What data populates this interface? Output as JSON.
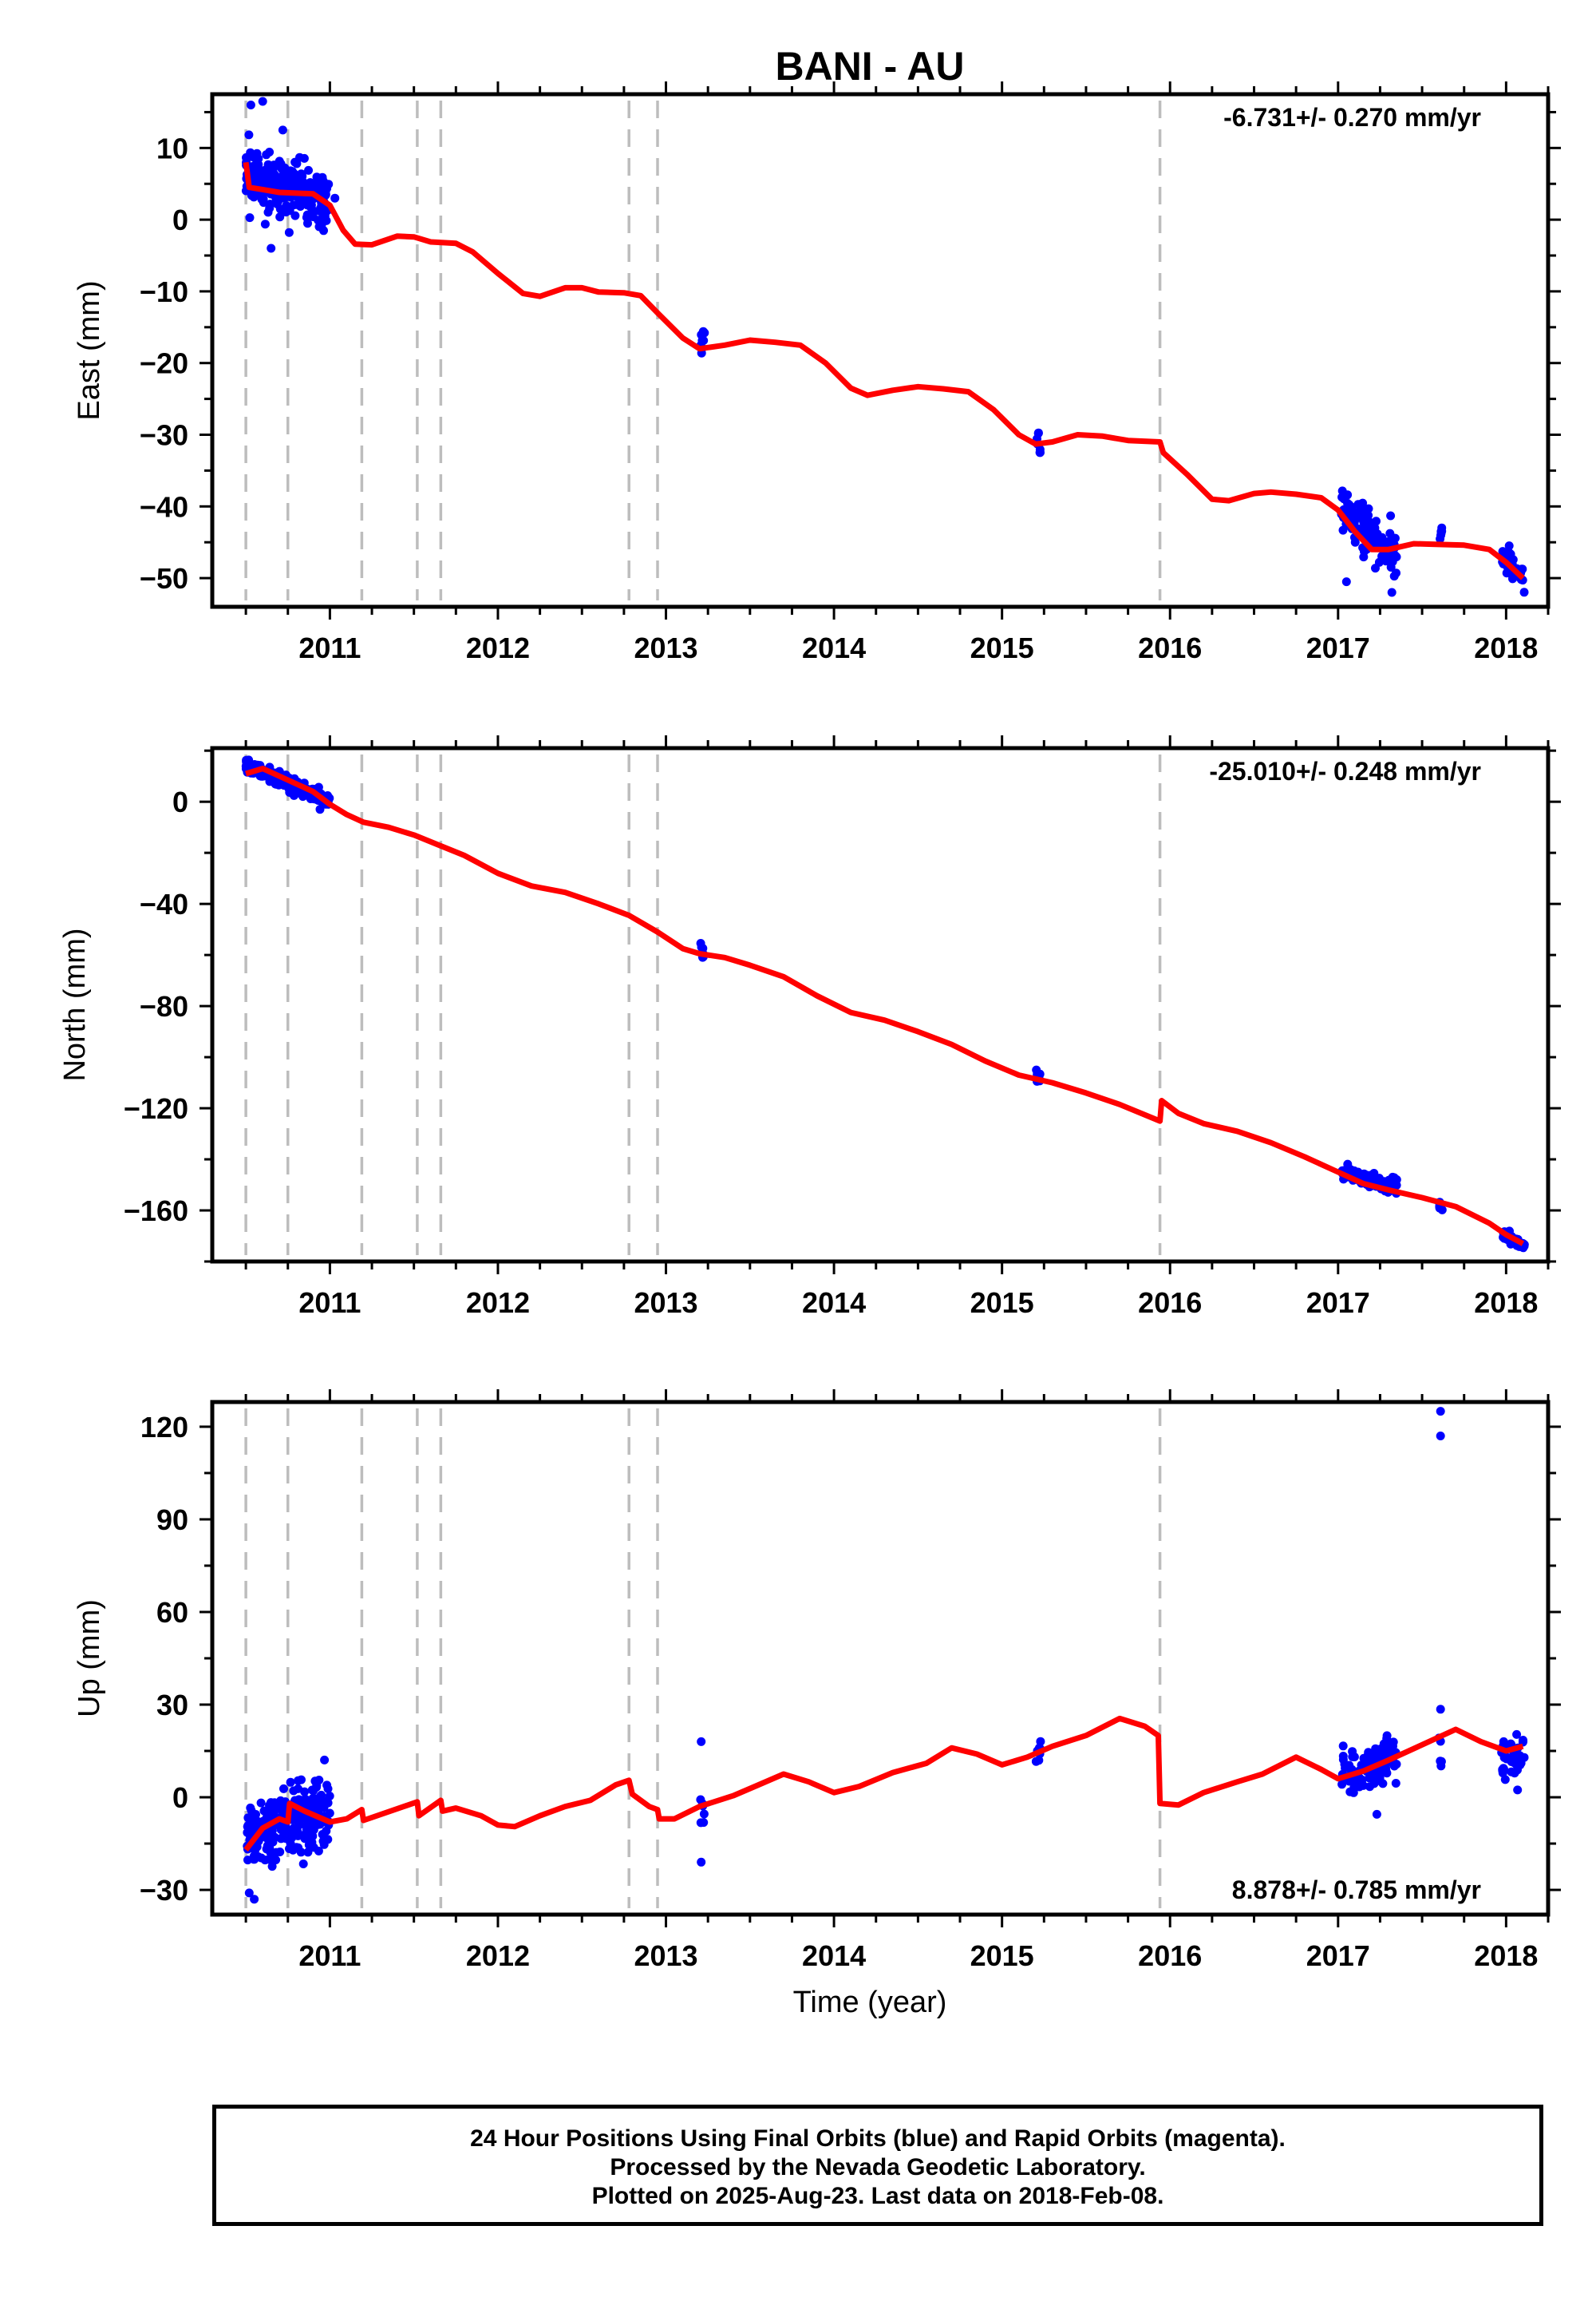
{
  "title": "BANI - AU",
  "xlabel": "Time (year)",
  "footer": {
    "line1": "24 Hour Positions Using Final Orbits (blue) and Rapid Orbits (magenta).",
    "line2": "Processed by the Nevada Geodetic Laboratory.",
    "line3": "Plotted on 2025-Aug-23. Last data on 2018-Feb-08."
  },
  "colors": {
    "data": "#0000ff",
    "model": "#ff0000",
    "breaks": "#bdbdbd",
    "axes": "#000000"
  },
  "chart_data": [
    {
      "type": "scatter",
      "panel": "east",
      "ylabel": "East (mm)",
      "rate": "-6.731+/- 0.270 mm/yr",
      "rate_position": "top-right",
      "xlim": [
        2010.3,
        2018.25
      ],
      "ylim": [
        -54,
        17.5
      ],
      "xticks": [
        2011,
        2012,
        2013,
        2014,
        2015,
        2016,
        2017,
        2018
      ],
      "yticks": [
        10,
        0,
        -10,
        -20,
        -30,
        -40,
        -50
      ],
      "breaks": [
        2010.5,
        2010.75,
        2011.19,
        2011.52,
        2011.66,
        2012.78,
        2012.95,
        2015.94
      ],
      "clusters": [
        {
          "x0": 2010.5,
          "x1": 2011.0,
          "y0": 6.0,
          "y1": 2.5,
          "spread": 3.5,
          "n": 260
        },
        {
          "x0": 2013.2,
          "x1": 2013.23,
          "y0": -16.0,
          "y1": -16.5,
          "spread": 1.6,
          "n": 8
        },
        {
          "x0": 2015.2,
          "x1": 2015.23,
          "y0": -32.0,
          "y1": -32.0,
          "spread": 2.6,
          "n": 7
        },
        {
          "x0": 2017.02,
          "x1": 2017.35,
          "y0": -40.0,
          "y1": -47.0,
          "spread": 3.0,
          "n": 110
        },
        {
          "x0": 2017.6,
          "x1": 2017.62,
          "y0": -43.0,
          "y1": -44.0,
          "spread": 2.2,
          "n": 6
        },
        {
          "x0": 2017.97,
          "x1": 2018.11,
          "y0": -47.0,
          "y1": -50.0,
          "spread": 1.8,
          "n": 45
        }
      ],
      "outliers": [
        [
          2010.53,
          16.0
        ],
        [
          2010.6,
          16.5
        ],
        [
          2010.72,
          12.5
        ],
        [
          2011.03,
          3.0
        ],
        [
          2010.65,
          -4.0
        ],
        [
          2017.32,
          -52.0
        ],
        [
          2017.05,
          -50.5
        ]
      ],
      "model": [
        [
          2010.5,
          8.0
        ],
        [
          2010.52,
          4.5
        ],
        [
          2010.6,
          4.2
        ],
        [
          2010.7,
          3.8
        ],
        [
          2010.8,
          3.7
        ],
        [
          2010.9,
          3.6
        ],
        [
          2011.0,
          2.0
        ],
        [
          2011.08,
          -1.5
        ],
        [
          2011.15,
          -3.4
        ],
        [
          2011.25,
          -3.5
        ],
        [
          2011.4,
          -2.3
        ],
        [
          2011.5,
          -2.4
        ],
        [
          2011.6,
          -3.1
        ],
        [
          2011.75,
          -3.3
        ],
        [
          2011.85,
          -4.5
        ],
        [
          2012.0,
          -7.5
        ],
        [
          2012.15,
          -10.3
        ],
        [
          2012.25,
          -10.7
        ],
        [
          2012.4,
          -9.5
        ],
        [
          2012.5,
          -9.5
        ],
        [
          2012.6,
          -10.1
        ],
        [
          2012.75,
          -10.2
        ],
        [
          2012.85,
          -10.6
        ],
        [
          2012.95,
          -13.0
        ],
        [
          2013.1,
          -16.5
        ],
        [
          2013.2,
          -18.0
        ],
        [
          2013.35,
          -17.5
        ],
        [
          2013.5,
          -16.8
        ],
        [
          2013.65,
          -17.1
        ],
        [
          2013.8,
          -17.5
        ],
        [
          2013.95,
          -20.0
        ],
        [
          2014.1,
          -23.5
        ],
        [
          2014.2,
          -24.5
        ],
        [
          2014.35,
          -23.8
        ],
        [
          2014.5,
          -23.3
        ],
        [
          2014.65,
          -23.6
        ],
        [
          2014.8,
          -24.0
        ],
        [
          2014.95,
          -26.5
        ],
        [
          2015.1,
          -30.0
        ],
        [
          2015.2,
          -31.3
        ],
        [
          2015.3,
          -31.0
        ],
        [
          2015.45,
          -30.0
        ],
        [
          2015.6,
          -30.2
        ],
        [
          2015.75,
          -30.8
        ],
        [
          2015.94,
          -31.0
        ],
        [
          2015.96,
          -32.5
        ],
        [
          2016.1,
          -35.5
        ],
        [
          2016.25,
          -39.0
        ],
        [
          2016.35,
          -39.2
        ],
        [
          2016.5,
          -38.2
        ],
        [
          2016.6,
          -38.0
        ],
        [
          2016.75,
          -38.3
        ],
        [
          2016.9,
          -38.8
        ],
        [
          2017.0,
          -40.5
        ],
        [
          2017.1,
          -43.5
        ],
        [
          2017.2,
          -46.0
        ],
        [
          2017.3,
          -46.0
        ],
        [
          2017.45,
          -45.2
        ],
        [
          2017.6,
          -45.3
        ],
        [
          2017.75,
          -45.4
        ],
        [
          2017.9,
          -46.0
        ],
        [
          2018.0,
          -47.8
        ],
        [
          2018.1,
          -50.0
        ]
      ]
    },
    {
      "type": "scatter",
      "panel": "north",
      "ylabel": "North (mm)",
      "rate": "-25.010+/- 0.248 mm/yr",
      "rate_position": "top-right",
      "xlim": [
        2010.3,
        2018.25
      ],
      "ylim": [
        -180,
        21
      ],
      "xticks": [
        2011,
        2012,
        2013,
        2014,
        2015,
        2016,
        2017,
        2018
      ],
      "yticks": [
        0,
        -40,
        -80,
        -120,
        -160
      ],
      "breaks": [
        2010.5,
        2010.75,
        2011.19,
        2011.52,
        2011.66,
        2012.78,
        2012.95,
        2015.94
      ],
      "clusters": [
        {
          "x0": 2010.5,
          "x1": 2011.0,
          "y0": 14.0,
          "y1": 0.0,
          "spread": 2.3,
          "n": 230
        },
        {
          "x0": 2013.2,
          "x1": 2013.23,
          "y0": -58.0,
          "y1": -59.0,
          "spread": 2.5,
          "n": 8
        },
        {
          "x0": 2015.2,
          "x1": 2015.23,
          "y0": -107.0,
          "y1": -109.0,
          "spread": 2.5,
          "n": 7
        },
        {
          "x0": 2017.02,
          "x1": 2017.35,
          "y0": -145.0,
          "y1": -151.0,
          "spread": 2.3,
          "n": 110
        },
        {
          "x0": 2017.6,
          "x1": 2017.62,
          "y0": -157.0,
          "y1": -159.0,
          "spread": 1.8,
          "n": 6
        },
        {
          "x0": 2017.97,
          "x1": 2018.11,
          "y0": -169.0,
          "y1": -174.0,
          "spread": 1.8,
          "n": 45
        }
      ],
      "outliers": [],
      "model": [
        [
          2010.5,
          11.0
        ],
        [
          2010.6,
          13.0
        ],
        [
          2010.75,
          8.5
        ],
        [
          2010.9,
          4.0
        ],
        [
          2011.0,
          -1.0
        ],
        [
          2011.1,
          -5.0
        ],
        [
          2011.2,
          -8.0
        ],
        [
          2011.35,
          -10.0
        ],
        [
          2011.5,
          -13.0
        ],
        [
          2011.65,
          -17.0
        ],
        [
          2011.8,
          -21.0
        ],
        [
          2012.0,
          -28.0
        ],
        [
          2012.2,
          -33.0
        ],
        [
          2012.4,
          -35.5
        ],
        [
          2012.6,
          -40.0
        ],
        [
          2012.78,
          -44.5
        ],
        [
          2012.95,
          -51.0
        ],
        [
          2013.1,
          -57.5
        ],
        [
          2013.2,
          -59.5
        ],
        [
          2013.35,
          -61.0
        ],
        [
          2013.5,
          -64.0
        ],
        [
          2013.7,
          -68.5
        ],
        [
          2013.9,
          -76.0
        ],
        [
          2014.1,
          -82.5
        ],
        [
          2014.3,
          -85.5
        ],
        [
          2014.5,
          -90.0
        ],
        [
          2014.7,
          -95.0
        ],
        [
          2014.9,
          -101.5
        ],
        [
          2015.1,
          -107.0
        ],
        [
          2015.3,
          -110.0
        ],
        [
          2015.5,
          -114.0
        ],
        [
          2015.7,
          -118.5
        ],
        [
          2015.94,
          -125.0
        ],
        [
          2015.95,
          -117.0
        ],
        [
          2016.05,
          -122.0
        ],
        [
          2016.2,
          -126.0
        ],
        [
          2016.4,
          -129.0
        ],
        [
          2016.6,
          -133.5
        ],
        [
          2016.8,
          -139.0
        ],
        [
          2017.0,
          -145.0
        ],
        [
          2017.15,
          -149.5
        ],
        [
          2017.3,
          -152.0
        ],
        [
          2017.5,
          -155.0
        ],
        [
          2017.7,
          -158.5
        ],
        [
          2017.9,
          -165.0
        ],
        [
          2018.0,
          -169.5
        ],
        [
          2018.1,
          -173.0
        ]
      ]
    },
    {
      "type": "scatter",
      "panel": "up",
      "ylabel": "Up (mm)",
      "rate": "8.878+/- 0.785 mm/yr",
      "rate_position": "bottom-right",
      "xlim": [
        2010.3,
        2018.25
      ],
      "ylim": [
        -38,
        128
      ],
      "xticks": [
        2011,
        2012,
        2013,
        2014,
        2015,
        2016,
        2017,
        2018
      ],
      "yticks": [
        120,
        90,
        60,
        30,
        0,
        -30
      ],
      "breaks": [
        2010.5,
        2010.75,
        2011.19,
        2011.52,
        2011.66,
        2012.78,
        2012.95,
        2015.94
      ],
      "clusters": [
        {
          "x0": 2010.5,
          "x1": 2011.0,
          "y0": -14.0,
          "y1": -4.0,
          "spread": 9.0,
          "n": 260
        },
        {
          "x0": 2013.2,
          "x1": 2013.23,
          "y0": -4.0,
          "y1": -4.0,
          "spread": 5.0,
          "n": 6
        },
        {
          "x0": 2015.2,
          "x1": 2015.23,
          "y0": 15.0,
          "y1": 15.0,
          "spread": 3.5,
          "n": 7
        },
        {
          "x0": 2017.02,
          "x1": 2017.35,
          "y0": 6.0,
          "y1": 13.0,
          "spread": 6.0,
          "n": 110
        },
        {
          "x0": 2017.6,
          "x1": 2017.62,
          "y0": 14.0,
          "y1": 14.0,
          "spread": 7.0,
          "n": 5
        },
        {
          "x0": 2017.97,
          "x1": 2018.11,
          "y0": 12.0,
          "y1": 13.0,
          "spread": 5.5,
          "n": 45
        }
      ],
      "outliers": [
        [
          2017.61,
          125.0
        ],
        [
          2017.61,
          117.0
        ],
        [
          2013.21,
          18.0
        ],
        [
          2013.21,
          -21.0
        ],
        [
          2017.61,
          28.5
        ],
        [
          2010.55,
          -33.0
        ],
        [
          2010.52,
          -31.0
        ]
      ],
      "model": [
        [
          2010.5,
          -17.0
        ],
        [
          2010.6,
          -10.0
        ],
        [
          2010.7,
          -7.0
        ],
        [
          2010.75,
          -8.0
        ],
        [
          2010.76,
          -2.0
        ],
        [
          2010.85,
          -4.5
        ],
        [
          2011.0,
          -8.0
        ],
        [
          2011.1,
          -7.0
        ],
        [
          2011.19,
          -4.0
        ],
        [
          2011.2,
          -7.5
        ],
        [
          2011.52,
          -1.5
        ],
        [
          2011.53,
          -6.0
        ],
        [
          2011.66,
          -1.0
        ],
        [
          2011.67,
          -4.5
        ],
        [
          2011.75,
          -3.5
        ],
        [
          2011.9,
          -6.0
        ],
        [
          2012.0,
          -9.0
        ],
        [
          2012.1,
          -9.5
        ],
        [
          2012.25,
          -6.0
        ],
        [
          2012.4,
          -3.0
        ],
        [
          2012.55,
          -1.0
        ],
        [
          2012.7,
          4.0
        ],
        [
          2012.78,
          5.5
        ],
        [
          2012.8,
          1.0
        ],
        [
          2012.9,
          -3.0
        ],
        [
          2012.95,
          -4.0
        ],
        [
          2012.96,
          -7.0
        ],
        [
          2013.05,
          -7.0
        ],
        [
          2013.2,
          -3.0
        ],
        [
          2013.4,
          0.5
        ],
        [
          2013.55,
          4.0
        ],
        [
          2013.7,
          7.5
        ],
        [
          2013.85,
          5.0
        ],
        [
          2014.0,
          1.5
        ],
        [
          2014.15,
          3.5
        ],
        [
          2014.35,
          8.0
        ],
        [
          2014.55,
          11.0
        ],
        [
          2014.7,
          16.0
        ],
        [
          2014.85,
          14.0
        ],
        [
          2015.0,
          10.5
        ],
        [
          2015.15,
          13.0
        ],
        [
          2015.3,
          16.5
        ],
        [
          2015.5,
          20.0
        ],
        [
          2015.7,
          25.5
        ],
        [
          2015.85,
          23.0
        ],
        [
          2015.93,
          20.0
        ],
        [
          2015.94,
          -2.0
        ],
        [
          2016.05,
          -2.5
        ],
        [
          2016.2,
          1.5
        ],
        [
          2016.4,
          5.0
        ],
        [
          2016.55,
          7.5
        ],
        [
          2016.75,
          13.0
        ],
        [
          2016.9,
          9.0
        ],
        [
          2017.0,
          6.0
        ],
        [
          2017.15,
          8.5
        ],
        [
          2017.3,
          12.0
        ],
        [
          2017.5,
          17.0
        ],
        [
          2017.7,
          22.0
        ],
        [
          2017.85,
          18.0
        ],
        [
          2018.0,
          15.0
        ],
        [
          2018.1,
          16.5
        ]
      ]
    }
  ]
}
